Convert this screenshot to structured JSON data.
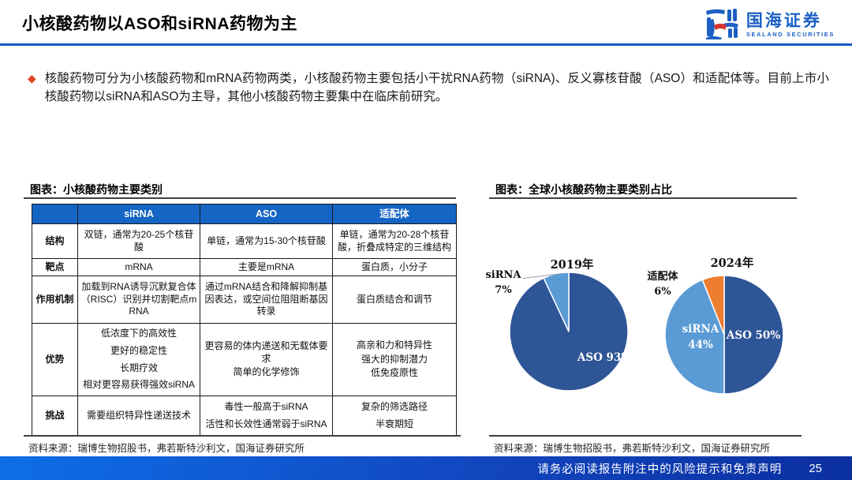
{
  "header": {
    "title": "小核酸药物以ASO和siRNA药物为主",
    "logo": {
      "name_cn": "国海证券",
      "name_en": "SEALAND SECURITIES"
    }
  },
  "bullet": {
    "text": "核酸药物可分为小核酸药物和mRNA药物两类，小核酸药物主要包括小干扰RNA药物（siRNA)、反义寡核苷酸（ASO）和适配体等。目前上市小核酸药物以siRNA和ASO为主导，其他小核酸药物主要集中在临床前研究。"
  },
  "left_panel": {
    "caption": "图表：小核酸药物主要类别",
    "table": {
      "headers": [
        "",
        "siRNA",
        "ASO",
        "适配体"
      ],
      "rows": [
        {
          "label": "结构",
          "cells": [
            [
              "双链，通常为20-25个核苷酸"
            ],
            [
              "单链，通常为15-30个核苷酸"
            ],
            [
              "单链，通常为20-28个核苷酸，折叠成特定的三维结构"
            ]
          ]
        },
        {
          "label": "靶点",
          "cells": [
            [
              "mRNA"
            ],
            [
              "主要是mRNA"
            ],
            [
              "蛋白质，小分子"
            ]
          ]
        },
        {
          "label": "作用机制",
          "cells": [
            [
              "加载到RNA诱导沉默复合体（RISC）识别并切割靶点mRNA"
            ],
            [
              "通过mRNA结合和降解抑制基因表达，或空间位阻阻断基因转录"
            ],
            [
              "蛋白质结合和调节"
            ]
          ]
        },
        {
          "label": "优势",
          "cells": [
            [
              "低浓度下的高效性",
              "更好的稳定性",
              "长期疗效",
              "相对更容易获得强效siRNA"
            ],
            [
              "更容易的体内递送和无载体要求",
              "简单的化学修饰"
            ],
            [
              "高亲和力和特异性",
              "强大的抑制潜力",
              "低免疫原性"
            ]
          ]
        },
        {
          "label": "挑战",
          "cells": [
            [
              "需要组织特异性递送技术"
            ],
            [
              "毒性一般高于siRNA",
              "活性和长效性通常弱于siRNA"
            ],
            [
              "复杂的筛选路径",
              "半衰期短"
            ]
          ]
        }
      ]
    },
    "source": "资料来源：瑞博生物招股书，弗若斯特沙利文，国海证券研究所"
  },
  "right_panel": {
    "caption": "图表：全球小核酸药物主要类别占比",
    "source": "资料来源：瑞博生物招股书，弗若斯特沙利文，国海证券研究所"
  },
  "chart_data": [
    {
      "type": "pie",
      "title": "2019年",
      "labels": [
        "ASO",
        "siRNA"
      ],
      "values": [
        93,
        7
      ],
      "colors": [
        "#2e5596",
        "#5b9bd5"
      ],
      "legend_position": "none",
      "inside_label_aso": "ASO 93%",
      "outside_label_sirna": "siRNA\n7%"
    },
    {
      "type": "pie",
      "title": "2024年",
      "labels": [
        "ASO",
        "siRNA",
        "适配体"
      ],
      "values": [
        50,
        44,
        6
      ],
      "colors": [
        "#2e5596",
        "#5b9bd5",
        "#ed7d31"
      ],
      "legend_position": "none",
      "inside_label_aso": "ASO 50%",
      "inside_label_sirna": "siRNA\n44%",
      "outside_label_aptamer": "适配体\n6%"
    }
  ],
  "footer": {
    "disclaimer": "请务必阅读报告附注中的风险提示和免责声明",
    "page": "25"
  },
  "colors": {
    "accent_blue": "#1857c8",
    "table_header": "#1565c4",
    "pie_dark_blue": "#2e5596",
    "pie_light_blue": "#5b9bd5",
    "pie_orange": "#ed7d31",
    "bullet_diamond": "#e0472b",
    "logo_blue": "#1b5fc4",
    "logo_red": "#d63530"
  }
}
